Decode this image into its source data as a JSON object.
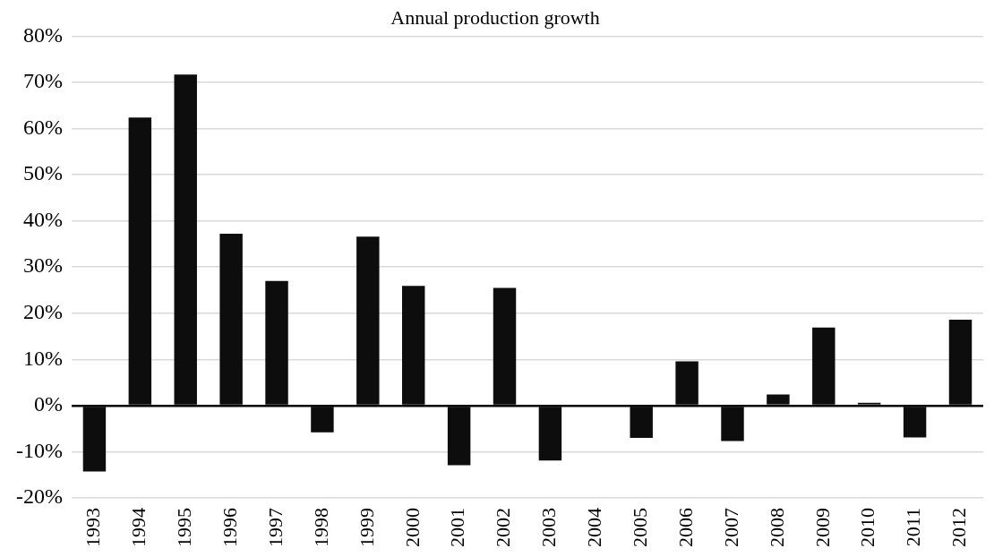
{
  "chart_data": {
    "type": "bar",
    "title": "Annual production growth",
    "categories": [
      "1993",
      "1994",
      "1995",
      "1996",
      "1997",
      "1998",
      "1999",
      "2000",
      "2001",
      "2002",
      "2003",
      "2004",
      "2005",
      "2006",
      "2007",
      "2008",
      "2009",
      "2010",
      "2011",
      "2012"
    ],
    "values": [
      -14.3,
      62.4,
      71.7,
      37.2,
      27.0,
      -5.8,
      36.6,
      25.9,
      -12.9,
      25.5,
      -11.9,
      0,
      -7.0,
      9.6,
      -7.7,
      2.4,
      16.9,
      0.6,
      -6.9,
      18.6
    ],
    "color": "#0d0d0d",
    "ylim": [
      -20,
      80
    ],
    "yticks": [
      {
        "value": -20,
        "label": "-20%"
      },
      {
        "value": -10,
        "label": "-10%"
      },
      {
        "value": 0,
        "label": "0%"
      },
      {
        "value": 10,
        "label": "10%"
      },
      {
        "value": 20,
        "label": "20%"
      },
      {
        "value": 30,
        "label": "30%"
      },
      {
        "value": 40,
        "label": "40%"
      },
      {
        "value": 50,
        "label": "50%"
      },
      {
        "value": 60,
        "label": "60%"
      },
      {
        "value": 70,
        "label": "70%"
      },
      {
        "value": 80,
        "label": "80%"
      }
    ],
    "grid": "y",
    "legend": false
  }
}
